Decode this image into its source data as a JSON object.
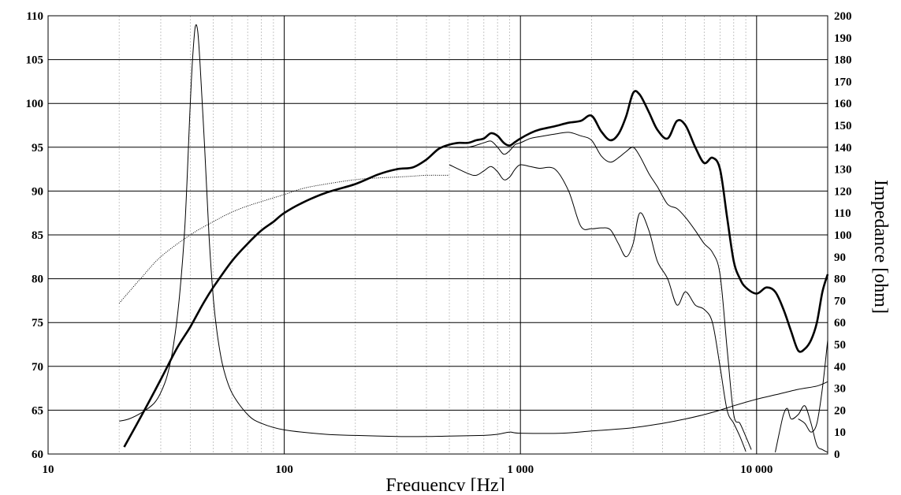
{
  "chart_data": {
    "type": "line",
    "x_scale": "log",
    "xlim": [
      10,
      20000
    ],
    "ylim_left": [
      60,
      110
    ],
    "ylim_right": [
      0,
      200
    ],
    "xlabel": "Frequency [Hz]",
    "ylabel_left": "",
    "ylabel_right": "Impedance [ohm]",
    "grid": true,
    "x_ticks": [
      {
        "value": 10,
        "label": "10"
      },
      {
        "value": 100,
        "label": "100"
      },
      {
        "value": 1000,
        "label": "1 000"
      },
      {
        "value": 10000,
        "label": "10 000"
      }
    ],
    "y_left_ticks": [
      {
        "value": 60,
        "label": "60"
      },
      {
        "value": 65,
        "label": "65"
      },
      {
        "value": 70,
        "label": "70"
      },
      {
        "value": 75,
        "label": "75"
      },
      {
        "value": 80,
        "label": "80"
      },
      {
        "value": 85,
        "label": "85"
      },
      {
        "value": 90,
        "label": "90"
      },
      {
        "value": 95,
        "label": "95"
      },
      {
        "value": 100,
        "label": "100"
      },
      {
        "value": 105,
        "label": "105"
      },
      {
        "value": 110,
        "label": "110"
      }
    ],
    "y_right_ticks": [
      {
        "value": 0,
        "label": "0"
      },
      {
        "value": 10,
        "label": "10"
      },
      {
        "value": 20,
        "label": "20"
      },
      {
        "value": 30,
        "label": "30"
      },
      {
        "value": 40,
        "label": "40"
      },
      {
        "value": 50,
        "label": "50"
      },
      {
        "value": 60,
        "label": "60"
      },
      {
        "value": 70,
        "label": "70"
      },
      {
        "value": 80,
        "label": "80"
      },
      {
        "value": 90,
        "label": "90"
      },
      {
        "value": 100,
        "label": "100"
      },
      {
        "value": 110,
        "label": "110"
      },
      {
        "value": 120,
        "label": "120"
      },
      {
        "value": 130,
        "label": "130"
      },
      {
        "value": 140,
        "label": "140"
      },
      {
        "value": 150,
        "label": "150"
      },
      {
        "value": 160,
        "label": "160"
      },
      {
        "value": 170,
        "label": "170"
      },
      {
        "value": 180,
        "label": "180"
      },
      {
        "value": 190,
        "label": "190"
      },
      {
        "value": 200,
        "label": "200"
      }
    ],
    "series": [
      {
        "axis": "left",
        "stroke": "#000000",
        "weight": "bold",
        "x": [
          21,
          25,
          30,
          35,
          40,
          45,
          50,
          60,
          70,
          80,
          90,
          100,
          120,
          150,
          200,
          250,
          300,
          350,
          400,
          450,
          500,
          550,
          600,
          650,
          700,
          750,
          800,
          850,
          900,
          950,
          1000,
          1100,
          1200,
          1400,
          1600,
          1800,
          2000,
          2200,
          2400,
          2600,
          2800,
          3000,
          3200,
          3500,
          3800,
          4200,
          4600,
          5000,
          5500,
          6000,
          6500,
          7000,
          7500,
          8000,
          8500,
          9000,
          10000,
          11000,
          12000,
          13000,
          14000,
          15000,
          16000,
          17000,
          18000,
          19000,
          20000
        ],
        "y": [
          60.8,
          64.5,
          68.5,
          72.0,
          74.5,
          77.0,
          79.0,
          82.0,
          84.0,
          85.5,
          86.5,
          87.5,
          88.7,
          89.8,
          90.8,
          91.9,
          92.5,
          92.7,
          93.6,
          94.8,
          95.3,
          95.5,
          95.5,
          95.8,
          96.0,
          96.6,
          96.3,
          95.5,
          95.2,
          95.6,
          96.0,
          96.6,
          97.0,
          97.4,
          97.8,
          98.0,
          98.6,
          96.8,
          95.8,
          96.5,
          98.5,
          101.2,
          101.0,
          99.0,
          97.0,
          96.0,
          98.0,
          97.5,
          95.0,
          93.2,
          93.8,
          92.5,
          87.0,
          82.0,
          80.0,
          79.0,
          78.3,
          79.0,
          78.5,
          76.5,
          74.0,
          71.8,
          72.0,
          73.0,
          75.0,
          78.5,
          80.5
        ]
      },
      {
        "axis": "left",
        "stroke": "#000000",
        "weight": "thin",
        "x": [
          500,
          600,
          700,
          750,
          800,
          850,
          900,
          950,
          1000,
          1100,
          1200,
          1400,
          1600,
          1800,
          2000,
          2200,
          2400,
          2600,
          2800,
          3000,
          3200,
          3500,
          3800,
          4200,
          4600,
          5000,
          5500,
          6000,
          6500,
          7000,
          7500,
          8000,
          8500,
          9000,
          9500
        ],
        "y": [
          95.0,
          95.0,
          95.5,
          95.7,
          95.0,
          94.2,
          94.6,
          95.3,
          95.5,
          96.0,
          96.2,
          96.5,
          96.7,
          96.3,
          95.8,
          94.0,
          93.3,
          93.8,
          94.5,
          95.0,
          94.0,
          92.0,
          90.5,
          88.5,
          88.0,
          87.0,
          85.5,
          84.0,
          83.0,
          80.5,
          72.0,
          64.5,
          63.5,
          62.0,
          60.5
        ]
      },
      {
        "axis": "left",
        "stroke": "#000000",
        "weight": "thin",
        "x": [
          500,
          600,
          650,
          700,
          750,
          800,
          850,
          900,
          950,
          1000,
          1100,
          1200,
          1400,
          1600,
          1800,
          2000,
          2200,
          2400,
          2600,
          2800,
          3000,
          3200,
          3500,
          3800,
          4200,
          4600,
          5000,
          5500,
          6000,
          6500,
          7000,
          7500,
          8000,
          8500,
          9000
        ],
        "y": [
          93.0,
          92.0,
          91.8,
          92.3,
          92.8,
          92.2,
          91.3,
          91.6,
          92.5,
          93.0,
          92.8,
          92.6,
          92.5,
          90.0,
          86.0,
          85.7,
          85.8,
          85.6,
          84.0,
          82.5,
          84.0,
          87.5,
          85.5,
          82.0,
          80.0,
          77.0,
          78.5,
          77.0,
          76.5,
          75.0,
          70.0,
          65.0,
          63.5,
          62.0,
          60.3
        ]
      },
      {
        "axis": "left",
        "stroke": "#000000",
        "weight": "thin",
        "segment": true,
        "x": [
          12000,
          12500,
          13000,
          13500,
          14000,
          15000,
          16000,
          17000,
          18000,
          19000,
          20000
        ],
        "y": [
          60.2,
          62.5,
          64.5,
          65.2,
          64.0,
          64.5,
          65.5,
          63.5,
          61.0,
          60.5,
          60.2
        ]
      },
      {
        "axis": "left",
        "stroke": "#000000",
        "weight": "thin",
        "segment": true,
        "x": [
          15000,
          16000,
          17000,
          18000,
          19000,
          20000
        ],
        "y": [
          64.0,
          63.5,
          62.5,
          63.5,
          67.5,
          73.0
        ]
      },
      {
        "axis": "left",
        "stroke": "#000000",
        "weight": "dotted",
        "x": [
          20,
          25,
          30,
          40,
          50,
          60,
          70,
          80,
          100,
          120,
          150,
          200,
          250,
          300,
          350,
          400,
          500
        ],
        "y": [
          77.2,
          80.2,
          82.5,
          85.0,
          86.5,
          87.6,
          88.3,
          88.8,
          89.6,
          90.3,
          90.8,
          91.3,
          91.5,
          91.6,
          91.7,
          91.8,
          91.8
        ]
      },
      {
        "axis": "right",
        "stroke": "#000000",
        "weight": "thin",
        "x": [
          20,
          22,
          25,
          28,
          30,
          32,
          34,
          36,
          38,
          40,
          41,
          42,
          43,
          44,
          46,
          48,
          50,
          52,
          55,
          60,
          70,
          80,
          100,
          150,
          200,
          300,
          400,
          500,
          700,
          800,
          900,
          1000,
          1500,
          2000,
          3000,
          4000,
          5000,
          6000,
          7000,
          8000,
          10000,
          12000,
          15000,
          18000,
          20000
        ],
        "y": [
          15,
          16,
          19,
          23,
          28,
          36,
          50,
          72,
          105,
          160,
          182,
          195,
          193,
          178,
          140,
          100,
          72,
          55,
          40,
          28,
          18,
          14,
          11,
          9,
          8.5,
          8,
          8,
          8.2,
          8.5,
          9,
          10,
          9.5,
          9.5,
          10.5,
          12,
          14,
          16,
          18,
          20,
          22,
          25,
          27,
          29.5,
          31,
          33
        ]
      }
    ]
  }
}
